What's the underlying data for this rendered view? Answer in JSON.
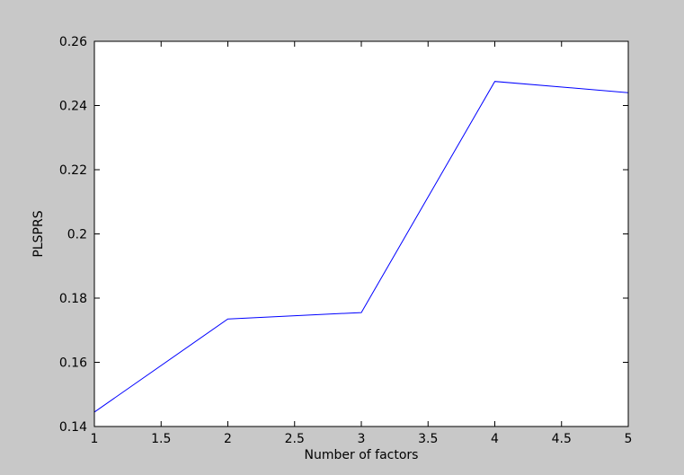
{
  "chart_data": {
    "type": "line",
    "title": "",
    "xlabel": "Number of factors",
    "ylabel": "PLSPRS",
    "xlim": [
      1,
      5
    ],
    "ylim": [
      0.14,
      0.26
    ],
    "x_ticks": [
      1,
      1.5,
      2,
      2.5,
      3,
      3.5,
      4,
      4.5,
      5
    ],
    "x_tick_labels": [
      "1",
      "1.5",
      "2",
      "2.5",
      "3",
      "3.5",
      "4",
      "4.5",
      "5"
    ],
    "y_ticks": [
      0.14,
      0.16,
      0.18,
      0.2,
      0.22,
      0.24,
      0.26
    ],
    "y_tick_labels": [
      "0.14",
      "0.16",
      "0.18",
      "0.2",
      "0.22",
      "0.24",
      "0.26"
    ],
    "grid": false,
    "series": [
      {
        "x": [
          1,
          2,
          3,
          4,
          5
        ],
        "values": [
          0.1445,
          0.1735,
          0.1755,
          0.2475,
          0.244
        ],
        "color": "#0000ff"
      }
    ],
    "colors": {
      "figure_background": "#c8c8c8",
      "axes_background": "#ffffff",
      "axes_color": "#000000"
    }
  }
}
